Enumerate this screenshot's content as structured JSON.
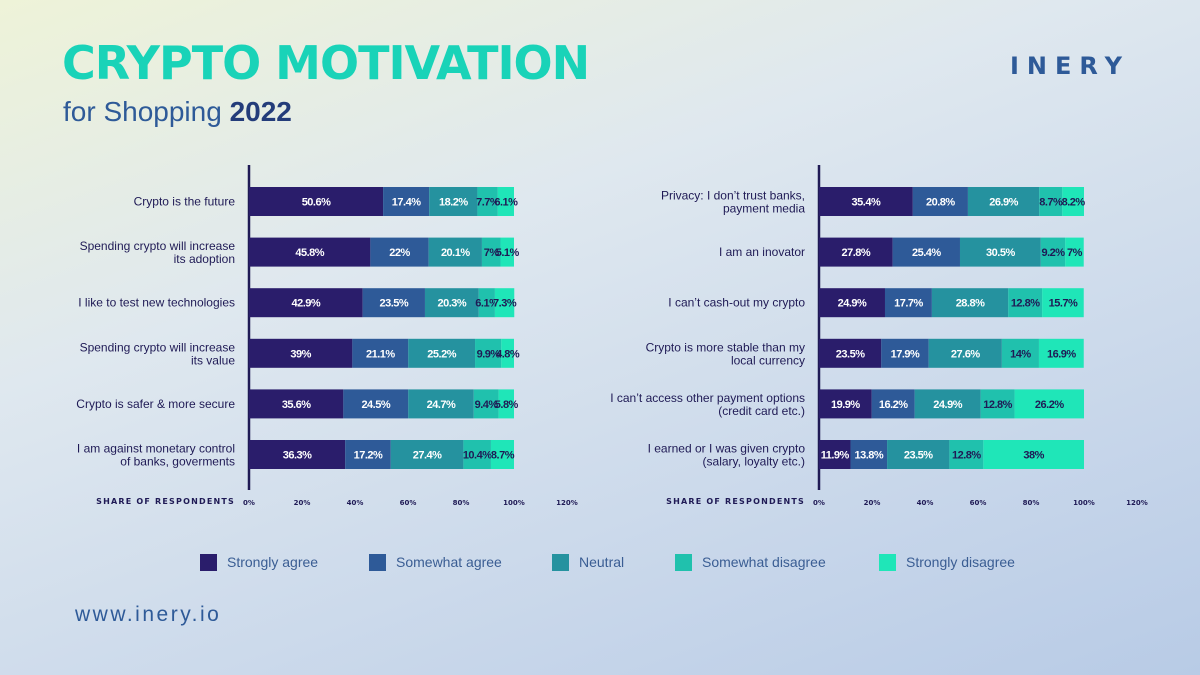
{
  "header": {
    "title": "CRYPTO MOTIVATION",
    "subtitle_prefix": "for Shopping",
    "subtitle_year": "2022",
    "logo_text": "INERY"
  },
  "footer": {
    "url": "www.inery.io"
  },
  "legend": [
    {
      "label": "Strongly agree",
      "color": "#2a1d6b"
    },
    {
      "label": "Somewhat agree",
      "color": "#2e5a98"
    },
    {
      "label": "Neutral",
      "color": "#25929f"
    },
    {
      "label": "Somewhat disagree",
      "color": "#20c1ad"
    },
    {
      "label": "Strongly disagree",
      "color": "#1fe6b8"
    }
  ],
  "chart_data": [
    {
      "type": "bar",
      "orientation": "horizontal",
      "stacked": true,
      "xlabel": "SHARE OF RESPONDENTS",
      "xlim": [
        0,
        120
      ],
      "xticks": [
        "0%",
        "20%",
        "40%",
        "60%",
        "80%",
        "100%",
        "120%"
      ],
      "categories": [
        "Crypto is the future",
        "Spending crypto will increase\nits adoption",
        "I like to test new technologies",
        "Spending crypto will increase\nits value",
        "Crypto is safer & more secure",
        "I am against monetary control\nof banks, goverments"
      ],
      "series": [
        {
          "name": "Strongly agree",
          "values": [
            50.6,
            45.8,
            42.9,
            39,
            35.6,
            36.3
          ]
        },
        {
          "name": "Somewhat agree",
          "values": [
            17.4,
            22,
            23.5,
            21.1,
            24.5,
            17.2
          ]
        },
        {
          "name": "Neutral",
          "values": [
            18.2,
            20.1,
            20.3,
            25.2,
            24.7,
            27.4
          ]
        },
        {
          "name": "Somewhat disagree",
          "values": [
            7.7,
            7,
            6.1,
            9.9,
            9.4,
            10.4
          ]
        },
        {
          "name": "Strongly disagree",
          "values": [
            6.1,
            5.1,
            7.3,
            4.8,
            5.8,
            8.7
          ]
        }
      ]
    },
    {
      "type": "bar",
      "orientation": "horizontal",
      "stacked": true,
      "xlabel": "SHARE OF RESPONDENTS",
      "xlim": [
        0,
        120
      ],
      "xticks": [
        "0%",
        "20%",
        "40%",
        "60%",
        "80%",
        "100%",
        "120%"
      ],
      "categories": [
        "Privacy: I don’t trust banks,\npayment media",
        "I am an inovator",
        "I can’t cash-out my crypto",
        "Crypto is more stable than my\nlocal currency",
        "I can’t access other payment options\n(credit card etc.)",
        "I earned or I was given crypto\n(salary, loyalty etc.)"
      ],
      "series": [
        {
          "name": "Strongly agree",
          "values": [
            35.4,
            27.8,
            24.9,
            23.5,
            19.9,
            11.9
          ]
        },
        {
          "name": "Somewhat agree",
          "values": [
            20.8,
            25.4,
            17.7,
            17.9,
            16.2,
            13.8
          ]
        },
        {
          "name": "Neutral",
          "values": [
            26.9,
            30.5,
            28.8,
            27.6,
            24.9,
            23.5
          ]
        },
        {
          "name": "Somewhat disagree",
          "values": [
            8.7,
            9.2,
            12.8,
            14,
            12.8,
            12.8
          ]
        },
        {
          "name": "Strongly disagree",
          "values": [
            8.2,
            7,
            15.7,
            16.9,
            26.2,
            38
          ]
        }
      ]
    }
  ]
}
